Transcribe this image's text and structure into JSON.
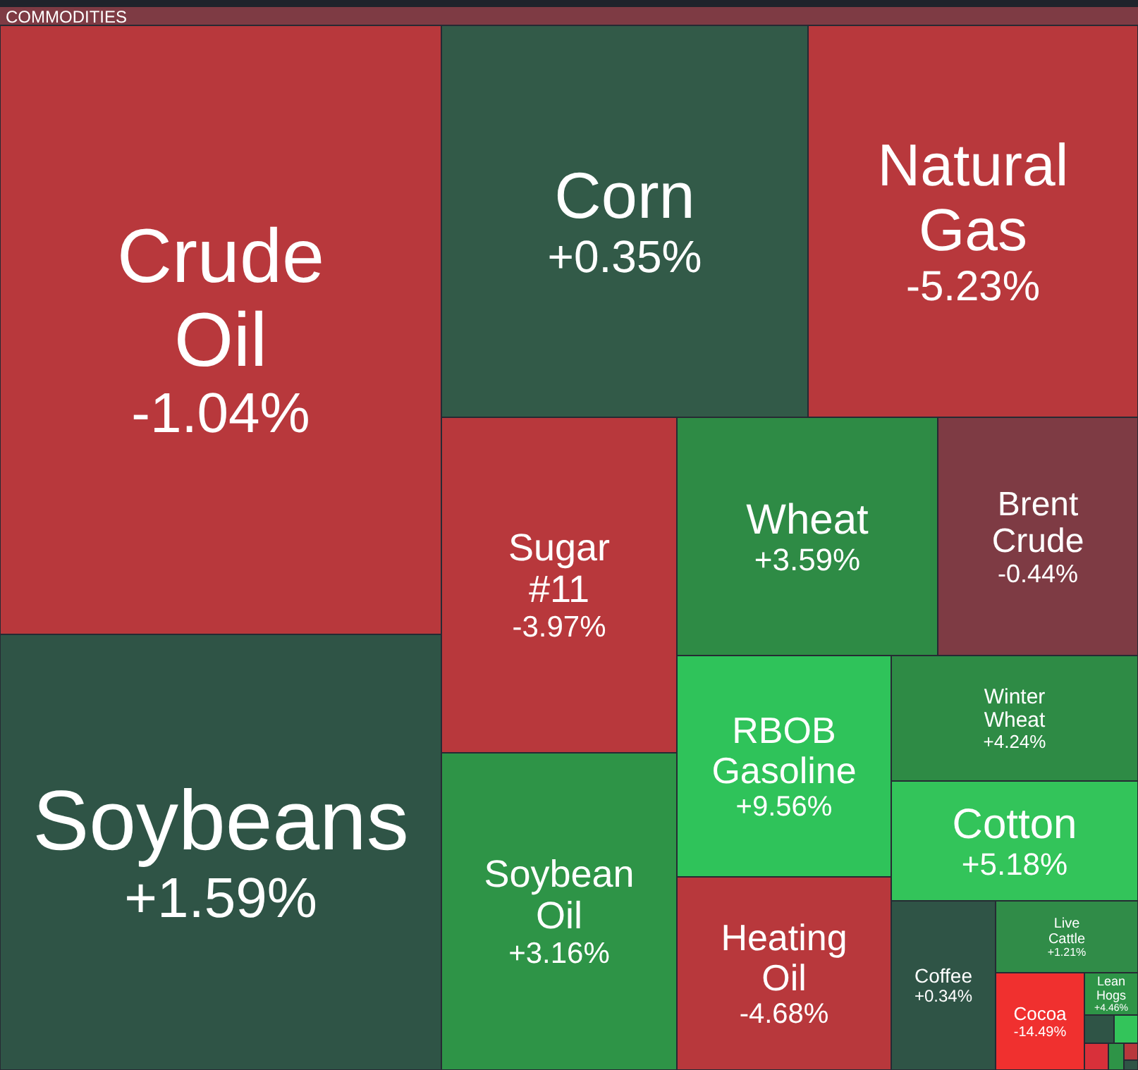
{
  "chart_data": {
    "type": "other",
    "title": "COMMODITIES",
    "categories": [
      "Crude Oil",
      "Soybeans",
      "Corn",
      "Natural Gas",
      "Sugar #11",
      "Soybean Oil",
      "Wheat",
      "Brent Crude",
      "RBOB Gasoline",
      "Heating Oil",
      "Winter Wheat",
      "Cotton",
      "Coffee",
      "Live Cattle",
      "Cocoa",
      "Lean Hogs",
      null,
      null,
      null,
      null,
      null,
      null
    ],
    "values": [
      -1.04,
      1.59,
      0.35,
      -5.23,
      -3.97,
      3.16,
      3.59,
      -0.44,
      9.56,
      -4.68,
      4.24,
      5.18,
      0.34,
      1.21,
      -14.49,
      4.46,
      null,
      null,
      null,
      null,
      null,
      null
    ],
    "value_labels": [
      "-1.04%",
      "+1.59%",
      "+0.35%",
      "-5.23%",
      "-3.97%",
      "+3.16%",
      "+3.59%",
      "-0.44%",
      "+9.56%",
      "-4.68%",
      "+4.24%",
      "+5.18%",
      "+0.34%",
      "+1.21%",
      "-14.49%",
      "+4.46%",
      null,
      null,
      null,
      null,
      null,
      null
    ],
    "colors": [
      "#b8383c",
      "#2f5446",
      "#325a48",
      "#b8383c",
      "#b8383c",
      "#2e9447",
      "#2e8b45",
      "#7e3b44",
      "#2fc35a",
      "#b8383c",
      "#2e8b45",
      "#33c45a",
      "#2f5446",
      "#308c48",
      "#f0302f",
      "#2e9447",
      "#2f5446",
      "#33c45a",
      "#d8303a",
      "#2e9447",
      "#b8383c",
      "#2f5446"
    ]
  }
}
